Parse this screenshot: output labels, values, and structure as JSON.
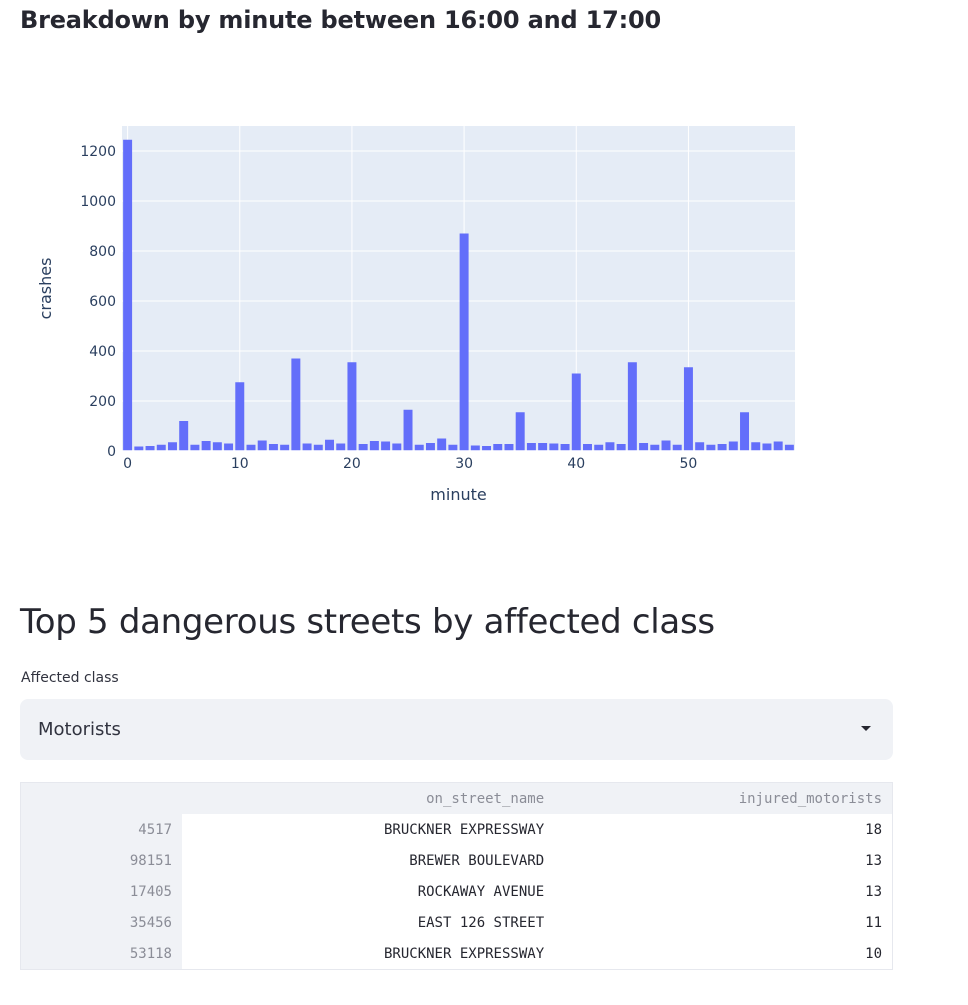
{
  "chart_section": {
    "title": "Breakdown by minute between 16:00 and 17:00"
  },
  "chart_data": {
    "type": "bar",
    "xlabel": "minute",
    "ylabel": "crashes",
    "xlim": [
      -0.5,
      59.5
    ],
    "ylim": [
      0,
      1300
    ],
    "xticks": [
      0,
      10,
      20,
      30,
      40,
      50
    ],
    "yticks": [
      0,
      200,
      400,
      600,
      800,
      1000,
      1200
    ],
    "grid": true,
    "bar_color": "#636efa",
    "plot_bg": "#e5ecf6",
    "x": [
      0,
      1,
      2,
      3,
      4,
      5,
      6,
      7,
      8,
      9,
      10,
      11,
      12,
      13,
      14,
      15,
      16,
      17,
      18,
      19,
      20,
      21,
      22,
      23,
      24,
      25,
      26,
      27,
      28,
      29,
      30,
      31,
      32,
      33,
      34,
      35,
      36,
      37,
      38,
      39,
      40,
      41,
      42,
      43,
      44,
      45,
      46,
      47,
      48,
      49,
      50,
      51,
      52,
      53,
      54,
      55,
      56,
      57,
      58,
      59
    ],
    "values": [
      1245,
      18,
      20,
      25,
      35,
      120,
      25,
      40,
      35,
      30,
      275,
      25,
      42,
      28,
      25,
      370,
      30,
      25,
      45,
      30,
      355,
      28,
      40,
      38,
      30,
      165,
      25,
      32,
      50,
      25,
      870,
      22,
      20,
      28,
      28,
      155,
      32,
      32,
      30,
      28,
      310,
      28,
      25,
      35,
      28,
      355,
      32,
      25,
      42,
      25,
      335,
      35,
      25,
      28,
      38,
      155,
      35,
      30,
      38,
      25
    ]
  },
  "table_section": {
    "title": "Top 5 dangerous streets by affected class",
    "select_label": "Affected class",
    "select_value": "Motorists",
    "columns": [
      "on_street_name",
      "injured_motorists"
    ],
    "rows": [
      {
        "index": "4517",
        "street": "BRUCKNER EXPRESSWAY",
        "value": "18"
      },
      {
        "index": "98151",
        "street": "BREWER BOULEVARD",
        "value": "13"
      },
      {
        "index": "17405",
        "street": "ROCKAWAY AVENUE",
        "value": "13"
      },
      {
        "index": "35456",
        "street": "EAST 126 STREET",
        "value": "11"
      },
      {
        "index": "53118",
        "street": "BRUCKNER EXPRESSWAY",
        "value": "10"
      }
    ]
  }
}
